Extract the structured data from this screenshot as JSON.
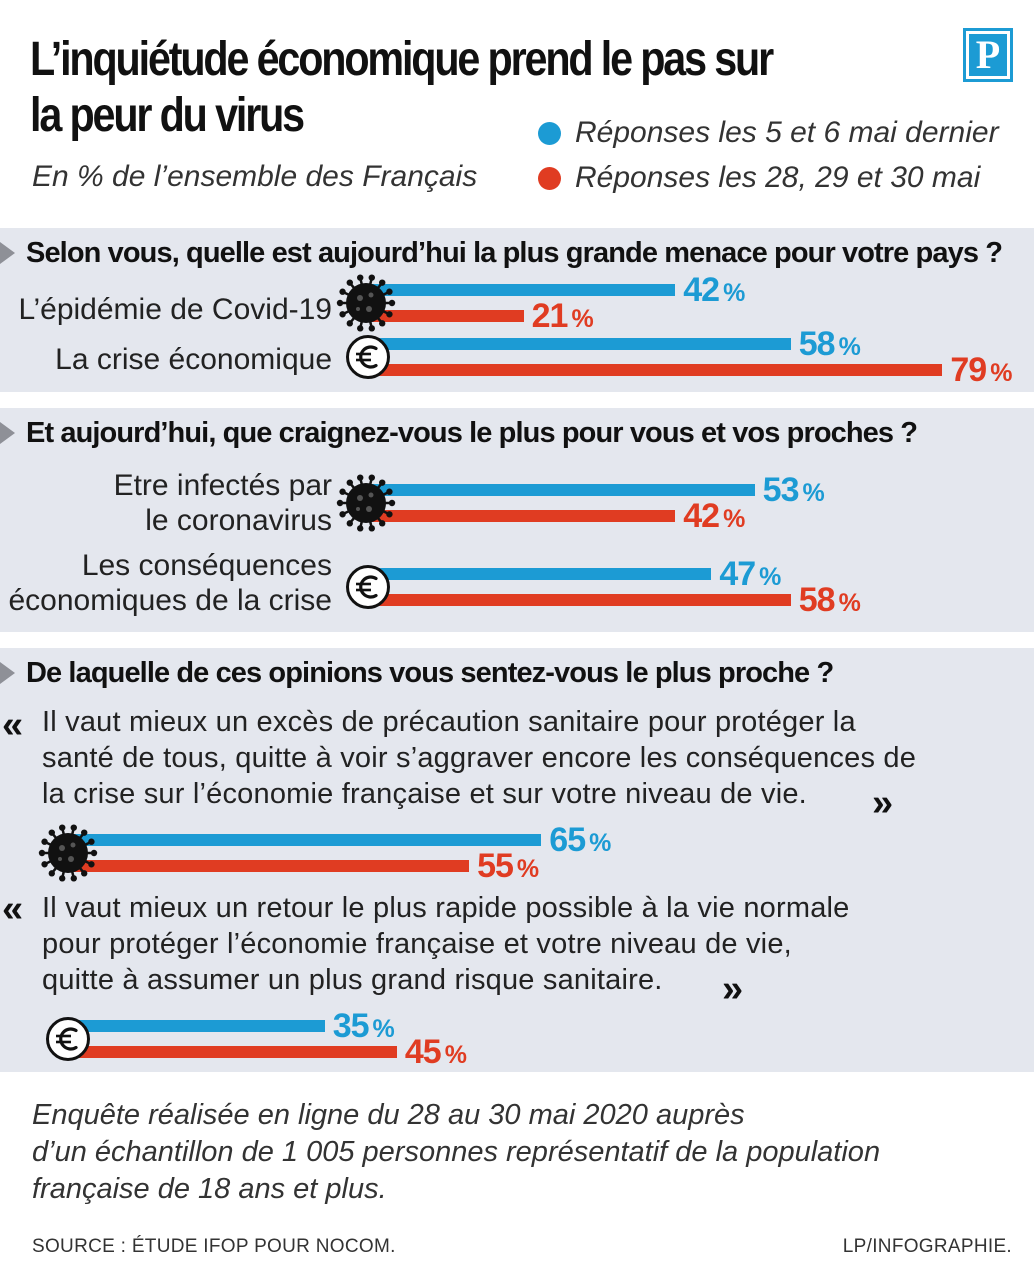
{
  "header": {
    "title": "L’inquiétude économique prend le pas sur la peur du virus",
    "subtitle": "En % de l’ensemble des Français",
    "logo_letter": "P"
  },
  "colors": {
    "blue": "#1c9bd4",
    "red": "#e03c22",
    "panel": "#e4e7ee"
  },
  "chart_data": {
    "type": "bar",
    "orientation": "horizontal",
    "unit": "%",
    "legend": [
      {
        "name": "Réponses les 5 et 6 mai dernier",
        "color": "#1c9bd4"
      },
      {
        "name": "Réponses les 28, 29 et 30 mai",
        "color": "#e03c22"
      }
    ],
    "questions": [
      {
        "question": "Selon vous, quelle est aujourd’hui la plus grande menace pour votre pays ?",
        "categories": [
          "L’épidémie de Covid-19",
          "La crise économique"
        ],
        "icons": [
          "virus-icon",
          "euro-icon"
        ],
        "series": [
          {
            "name": "Réponses les 5 et 6 mai dernier",
            "values": [
              42,
              58
            ]
          },
          {
            "name": "Réponses les 28, 29 et 30 mai",
            "values": [
              21,
              79
            ]
          }
        ]
      },
      {
        "question": "Et aujourd’hui, que craignez-vous le plus pour vous et vos proches ?",
        "categories": [
          "Etre infectés par le coronavirus",
          "Les conséquences économiques de la crise"
        ],
        "category_lines": [
          [
            "Etre infectés par",
            "le coronavirus"
          ],
          [
            "Les conséquences",
            "économiques de la crise"
          ]
        ],
        "icons": [
          "virus-icon",
          "euro-icon"
        ],
        "series": [
          {
            "name": "Réponses les 5 et 6 mai dernier",
            "values": [
              53,
              47
            ]
          },
          {
            "name": "Réponses les 28, 29 et 30 mai",
            "values": [
              42,
              58
            ]
          }
        ]
      },
      {
        "question": "De laquelle de ces opinions vous sentez-vous le plus proche ?",
        "categories": [
          "Il vaut mieux un excès de précaution sanitaire pour protéger la santé de tous, quitte à voir s’aggraver encore les conséquences de la crise sur l’économie française et sur votre niveau de vie.",
          "Il vaut mieux un retour le plus rapide possible à la vie normale pour protéger l’économie française et votre niveau de vie, quitte à assumer un plus grand risque sanitaire."
        ],
        "category_lines": [
          [
            "Il vaut mieux un excès de précaution sanitaire pour protéger la",
            "santé de tous, quitte à voir s’aggraver encore les conséquences de",
            "la crise sur l’économie française et sur votre niveau de vie."
          ],
          [
            "Il vaut mieux un retour le plus rapide possible à la vie normale",
            "pour protéger l’économie française et votre niveau de vie,",
            "quitte à assumer un plus grand risque sanitaire."
          ]
        ],
        "icons": [
          "virus-icon",
          "euro-icon"
        ],
        "series": [
          {
            "name": "Réponses les 5 et 6 mai dernier",
            "values": [
              65,
              35
            ]
          },
          {
            "name": "Réponses les 28, 29 et 30 mai",
            "values": [
              55,
              45
            ]
          }
        ]
      }
    ]
  },
  "quote_marks": {
    "open": "«",
    "close": "»"
  },
  "footnote": "Enquête réalisée en ligne du 28 au 30 mai 2020 auprès d’un échantillon de 1 005 personnes représentatif de la population française de 18 ans et plus.",
  "footnote_lines": [
    "Enquête réalisée en ligne du 28 au 30 mai 2020 auprès",
    "d’un échantillon de 1 005 personnes représentatif de la population",
    "française de 18 ans et plus."
  ],
  "source": "SOURCE : ÉTUDE IFOP POUR NOCOM.",
  "credit": "LP/INFOGRAPHIE."
}
